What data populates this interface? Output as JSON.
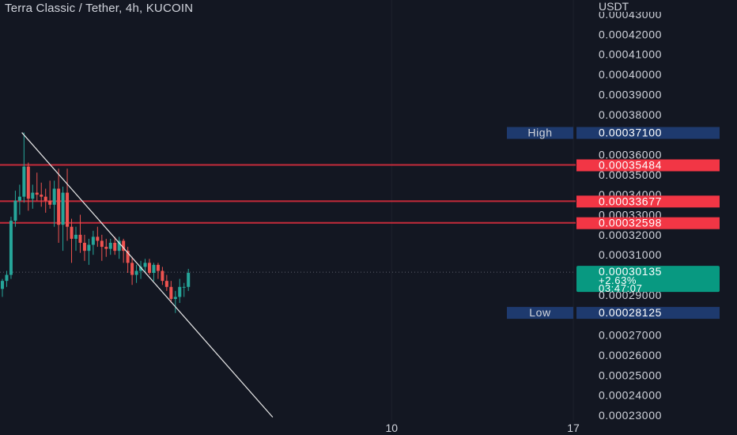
{
  "header": {
    "title": "Terra Classic / Tether, 4h, KUCOIN"
  },
  "chart_data": {
    "type": "candlestick",
    "unit": "USDT",
    "ylim": [
      0.00023,
      0.00043
    ],
    "y_ticks": [
      "0.00043000",
      "0.00042000",
      "0.00041000",
      "0.00040000",
      "0.00039000",
      "0.00038000",
      "0.00036000",
      "0.00035000",
      "0.00034000",
      "0.00033000",
      "0.00032000",
      "0.00031000",
      "0.00029000",
      "0.00027000",
      "0.00026000",
      "0.00025000",
      "0.00024000",
      "0.00023000"
    ],
    "x_ticks": [
      {
        "label": "10",
        "index": 90
      },
      {
        "label": "17",
        "index": 132
      }
    ],
    "high": {
      "label": "High",
      "value": "0.00037100"
    },
    "low": {
      "label": "Low",
      "value": "0.00028125"
    },
    "current": {
      "value": "0.00030135",
      "change": "+2.63%",
      "countdown": "03:47:07"
    },
    "levels": [
      {
        "value": 0.00035484,
        "label": "0.00035484"
      },
      {
        "value": 0.00033677,
        "label": "0.00033677"
      },
      {
        "value": 0.00032598,
        "label": "0.00032598"
      }
    ],
    "trendline": {
      "from": {
        "index": 4.5,
        "value": 0.000371
      },
      "to": {
        "index": 62.5,
        "value": 0.000229
      }
    },
    "candles": [
      {
        "o": 0.000293,
        "h": 0.000298,
        "l": 0.000289,
        "c": 0.000297
      },
      {
        "o": 0.000297,
        "h": 0.000302,
        "l": 0.000294,
        "c": 0.0003
      },
      {
        "o": 0.0003,
        "h": 0.000329,
        "l": 0.000298,
        "c": 0.000327
      },
      {
        "o": 0.000327,
        "h": 0.000342,
        "l": 0.000324,
        "c": 0.000337
      },
      {
        "o": 0.000337,
        "h": 0.000345,
        "l": 0.00033,
        "c": 0.000339
      },
      {
        "o": 0.000339,
        "h": 0.000371,
        "l": 0.000336,
        "c": 0.000354
      },
      {
        "o": 0.000354,
        "h": 0.000356,
        "l": 0.000332,
        "c": 0.000338
      },
      {
        "o": 0.000338,
        "h": 0.000345,
        "l": 0.000333,
        "c": 0.000341
      },
      {
        "o": 0.000341,
        "h": 0.000351,
        "l": 0.000337,
        "c": 0.00034
      },
      {
        "o": 0.00034,
        "h": 0.000346,
        "l": 0.000334,
        "c": 0.000339
      },
      {
        "o": 0.000339,
        "h": 0.000343,
        "l": 0.000331,
        "c": 0.000337
      },
      {
        "o": 0.000337,
        "h": 0.000347,
        "l": 0.000333,
        "c": 0.000335
      },
      {
        "o": 0.000335,
        "h": 0.000347,
        "l": 0.000324,
        "c": 0.000343
      },
      {
        "o": 0.000343,
        "h": 0.000353,
        "l": 0.000316,
        "c": 0.000325
      },
      {
        "o": 0.000325,
        "h": 0.000344,
        "l": 0.000312,
        "c": 0.000341
      },
      {
        "o": 0.000341,
        "h": 0.000353,
        "l": 0.000317,
        "c": 0.000324
      },
      {
        "o": 0.000324,
        "h": 0.000328,
        "l": 0.000306,
        "c": 0.000318
      },
      {
        "o": 0.000318,
        "h": 0.000324,
        "l": 0.000312,
        "c": 0.00032
      },
      {
        "o": 0.00032,
        "h": 0.00033,
        "l": 0.000311,
        "c": 0.000316
      },
      {
        "o": 0.000316,
        "h": 0.00032,
        "l": 0.000307,
        "c": 0.000312
      },
      {
        "o": 0.000312,
        "h": 0.000318,
        "l": 0.000305,
        "c": 0.000315
      },
      {
        "o": 0.000315,
        "h": 0.000322,
        "l": 0.00031,
        "c": 0.000319
      },
      {
        "o": 0.000319,
        "h": 0.000324,
        "l": 0.000314,
        "c": 0.000317
      },
      {
        "o": 0.000317,
        "h": 0.00032,
        "l": 0.000307,
        "c": 0.000314
      },
      {
        "o": 0.000314,
        "h": 0.000318,
        "l": 0.000309,
        "c": 0.000313
      },
      {
        "o": 0.000313,
        "h": 0.000318,
        "l": 0.00031,
        "c": 0.000316
      },
      {
        "o": 0.000316,
        "h": 0.000319,
        "l": 0.00031,
        "c": 0.000312
      },
      {
        "o": 0.000312,
        "h": 0.000319,
        "l": 0.000308,
        "c": 0.000317
      },
      {
        "o": 0.000317,
        "h": 0.000318,
        "l": 0.000306,
        "c": 0.000312
      },
      {
        "o": 0.000312,
        "h": 0.000314,
        "l": 0.000301,
        "c": 0.000306
      },
      {
        "o": 0.000306,
        "h": 0.000309,
        "l": 0.000295,
        "c": 0.0003
      },
      {
        "o": 0.0003,
        "h": 0.000305,
        "l": 0.000296,
        "c": 0.000302
      },
      {
        "o": 0.000302,
        "h": 0.000307,
        "l": 0.000298,
        "c": 0.000304
      },
      {
        "o": 0.000304,
        "h": 0.000308,
        "l": 0.000301,
        "c": 0.000306
      },
      {
        "o": 0.000306,
        "h": 0.000308,
        "l": 0.0003,
        "c": 0.000301
      },
      {
        "o": 0.000301,
        "h": 0.000306,
        "l": 0.000297,
        "c": 0.000305
      },
      {
        "o": 0.000305,
        "h": 0.000306,
        "l": 0.000298,
        "c": 0.000302
      },
      {
        "o": 0.000302,
        "h": 0.000304,
        "l": 0.000295,
        "c": 0.000297
      },
      {
        "o": 0.000297,
        "h": 0.0003,
        "l": 0.000292,
        "c": 0.000294
      },
      {
        "o": 0.000294,
        "h": 0.000297,
        "l": 0.000286,
        "c": 0.000288
      },
      {
        "o": 0.000288,
        "h": 0.000292,
        "l": 0.000281,
        "c": 0.000289
      },
      {
        "o": 0.000289,
        "h": 0.000298,
        "l": 0.000286,
        "c": 0.000294
      },
      {
        "o": 0.000294,
        "h": 0.000296,
        "l": 0.000289,
        "c": 0.000294
      },
      {
        "o": 0.000294,
        "h": 0.000303,
        "l": 0.000292,
        "c": 0.000301
      }
    ]
  }
}
